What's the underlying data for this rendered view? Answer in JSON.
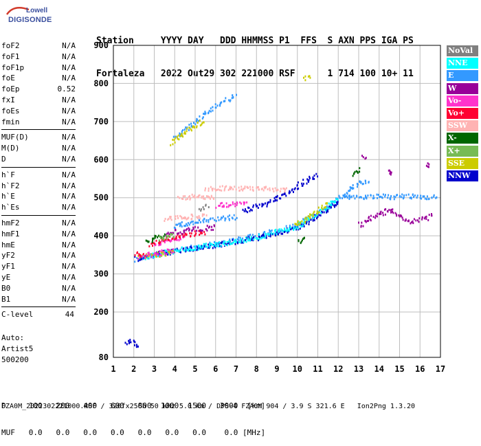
{
  "logo": {
    "brand": "Lowell",
    "product": "DIGISONDE"
  },
  "header": {
    "labels": [
      "Station",
      "YYYY",
      "DAY",
      "DDD",
      "HHMMSS",
      "P1",
      "FFS",
      "S",
      "AXN",
      "PPS",
      "IGA",
      "PS"
    ],
    "values": [
      "Fortaleza",
      "2022",
      "Out29",
      "302",
      "221000",
      "RSF",
      "",
      "1",
      "714",
      "100",
      "10+",
      "11"
    ]
  },
  "params_group1": [
    {
      "name": "foF2",
      "value": "N/A"
    },
    {
      "name": "foF1",
      "value": "N/A"
    },
    {
      "name": "foF1p",
      "value": "N/A"
    },
    {
      "name": "foE",
      "value": "N/A"
    },
    {
      "name": "foEp",
      "value": "0.52"
    },
    {
      "name": "fxI",
      "value": "N/A"
    },
    {
      "name": "foEs",
      "value": "N/A"
    },
    {
      "name": "fmin",
      "value": "N/A"
    }
  ],
  "params_group2": [
    {
      "name": "MUF(D)",
      "value": "N/A"
    },
    {
      "name": "M(D)",
      "value": "N/A"
    },
    {
      "name": "D",
      "value": "N/A"
    }
  ],
  "params_group3": [
    {
      "name": "h`F",
      "value": "N/A"
    },
    {
      "name": "h`F2",
      "value": "N/A"
    },
    {
      "name": "h`E",
      "value": "N/A"
    },
    {
      "name": "h`Es",
      "value": "N/A"
    }
  ],
  "params_group4": [
    {
      "name": "hmF2",
      "value": "N/A"
    },
    {
      "name": "hmF1",
      "value": "N/A"
    },
    {
      "name": "hmE",
      "value": "N/A"
    },
    {
      "name": "yF2",
      "value": "N/A"
    },
    {
      "name": "yF1",
      "value": "N/A"
    },
    {
      "name": "yE",
      "value": "N/A"
    },
    {
      "name": "B0",
      "value": "N/A"
    },
    {
      "name": "B1",
      "value": "N/A"
    }
  ],
  "clevel": {
    "name": "C-level",
    "value": "44"
  },
  "auto": [
    "Auto:",
    "Artist5",
    "500200"
  ],
  "legend": [
    {
      "label": "NoVal",
      "color": "#808080"
    },
    {
      "label": "NNE",
      "color": "#00ffff"
    },
    {
      "label": "E",
      "color": "#3399ff"
    },
    {
      "label": "W",
      "color": "#990099"
    },
    {
      "label": "Vo-",
      "color": "#ff33cc"
    },
    {
      "label": "Vo+",
      "color": "#ff0033"
    },
    {
      "label": "SSW",
      "color": "#ffb3b3"
    },
    {
      "label": "X-",
      "color": "#006600"
    },
    {
      "label": "X+",
      "color": "#77bb55"
    },
    {
      "label": "SSE",
      "color": "#cccc00"
    },
    {
      "label": "NNW",
      "color": "#0000cc"
    }
  ],
  "footer": {
    "d_label": "D",
    "d_values": [
      "100",
      "200",
      "400",
      "600",
      "800",
      "1000",
      "1500",
      "3000",
      "[km]"
    ],
    "muf_label": "MUF",
    "muf_values": [
      "0.0",
      "0.0",
      "0.0",
      "0.0",
      "0.0",
      "0.0",
      "0.0",
      "0.0",
      "[MHz]"
    ],
    "line": "FZA0M_2022302221000.RSF / 320fx256h 50 kHz 5.0 km / DPS-4 FZA0M 904 / 3.9 S 321.6 E   Ion2Png 1.3.20"
  },
  "chart_data": {
    "type": "scatter",
    "xlim": [
      1,
      17
    ],
    "ylim": [
      80,
      900
    ],
    "xticks": [
      1,
      2,
      3,
      4,
      5,
      6,
      7,
      8,
      9,
      10,
      11,
      12,
      13,
      14,
      15,
      16,
      17
    ],
    "yticks": [
      80,
      200,
      300,
      400,
      500,
      600,
      700,
      800,
      900
    ],
    "grid": "on",
    "legend_placement": "right",
    "series": [
      {
        "name": "E",
        "traces": [
          [
            [
              2.1,
              340
            ],
            [
              3.0,
              352
            ],
            [
              4.0,
              362
            ],
            [
              5.0,
              372
            ],
            [
              6.0,
              382
            ],
            [
              7.0,
              392
            ],
            [
              8.0,
              402
            ],
            [
              9.0,
              415
            ],
            [
              10.0,
              432
            ],
            [
              11.0,
              462
            ],
            [
              11.5,
              480
            ],
            [
              12.0,
              498
            ],
            [
              12.5,
              520
            ],
            [
              13.0,
              540
            ],
            [
              13.5,
              548
            ]
          ],
          [
            [
              3.9,
              428
            ],
            [
              5.0,
              438
            ],
            [
              6.0,
              446
            ],
            [
              7.0,
              452
            ]
          ],
          [
            [
              12.2,
              505
            ],
            [
              14.5,
              505
            ],
            [
              16.8,
              505
            ]
          ],
          [
            [
              4.0,
              660
            ],
            [
              5.0,
              700
            ],
            [
              6.0,
              745
            ],
            [
              7.0,
              770
            ]
          ]
        ]
      },
      {
        "name": "NNW",
        "traces": [
          [
            [
              2.1,
              342
            ],
            [
              3.0,
              354
            ],
            [
              4.5,
              366
            ],
            [
              6.0,
              378
            ],
            [
              7.5,
              392
            ],
            [
              9.0,
              408
            ],
            [
              10.0,
              425
            ],
            [
              11.0,
              455
            ],
            [
              12.0,
              492
            ]
          ],
          [
            [
              7.3,
              468
            ],
            [
              8.5,
              488
            ],
            [
              9.5,
              515
            ],
            [
              10.3,
              545
            ],
            [
              11.0,
              560
            ]
          ],
          [
            [
              1.6,
              118
            ],
            [
              1.8,
              125
            ],
            [
              2.0,
              122
            ],
            [
              2.2,
              110
            ]
          ]
        ]
      },
      {
        "name": "NNE",
        "traces": [
          [
            [
              2.5,
              345
            ],
            [
              3.5,
              358
            ],
            [
              5.0,
              372
            ],
            [
              6.5,
              384
            ],
            [
              8.0,
              398
            ],
            [
              10.0,
              428
            ],
            [
              11.2,
              470
            ],
            [
              12.0,
              500
            ]
          ]
        ]
      },
      {
        "name": "SSE",
        "traces": [
          [
            [
              3.8,
              645
            ],
            [
              4.2,
              665
            ],
            [
              4.8,
              688
            ],
            [
              5.5,
              705
            ]
          ],
          [
            [
              9.8,
              428
            ],
            [
              10.5,
              450
            ],
            [
              11.0,
              470
            ],
            [
              11.5,
              488
            ]
          ],
          [
            [
              2.2,
              345
            ],
            [
              3.0,
              352
            ],
            [
              4.0,
              360
            ]
          ],
          [
            [
              10.3,
              815
            ],
            [
              10.6,
              820
            ]
          ]
        ]
      },
      {
        "name": "SSW",
        "traces": [
          [
            [
              5.5,
              525
            ],
            [
              6.5,
              528
            ],
            [
              7.5,
              527
            ],
            [
              8.5,
              525
            ],
            [
              9.5,
              522
            ]
          ],
          [
            [
              4.2,
              503
            ],
            [
              5.0,
              505
            ],
            [
              6.0,
              503
            ]
          ],
          [
            [
              3.5,
              448
            ],
            [
              4.5,
              452
            ],
            [
              5.5,
              455
            ]
          ]
        ]
      },
      {
        "name": "Vo-",
        "traces": [
          [
            [
              3.0,
              382
            ],
            [
              3.5,
              388
            ],
            [
              4.0,
              395
            ],
            [
              4.5,
              400
            ]
          ],
          [
            [
              6.0,
              482
            ],
            [
              7.0,
              485
            ],
            [
              7.5,
              487
            ]
          ],
          [
            [
              2.2,
              347
            ],
            [
              3.0,
              355
            ],
            [
              4.0,
              365
            ]
          ]
        ]
      },
      {
        "name": "Vo+",
        "traces": [
          [
            [
              2.8,
              378
            ],
            [
              3.5,
              392
            ],
            [
              4.5,
              405
            ],
            [
              5.5,
              412
            ]
          ],
          [
            [
              2.0,
              352
            ],
            [
              2.5,
              356
            ]
          ]
        ]
      },
      {
        "name": "W",
        "traces": [
          [
            [
              13.0,
              430
            ],
            [
              13.5,
              445
            ],
            [
              14.0,
              460
            ],
            [
              14.5,
              470
            ],
            [
              15.0,
              450
            ],
            [
              15.5,
              440
            ],
            [
              16.0,
              445
            ],
            [
              16.6,
              455
            ]
          ],
          [
            [
              13.2,
              610
            ],
            [
              13.3,
              600
            ]
          ],
          [
            [
              14.5,
              580
            ],
            [
              14.6,
              560
            ]
          ],
          [
            [
              16.3,
              590
            ],
            [
              16.5,
              580
            ]
          ],
          [
            [
              3.5,
              408
            ],
            [
              4.0,
              412
            ],
            [
              4.5,
              415
            ],
            [
              5.0,
              420
            ],
            [
              6.0,
              425
            ]
          ]
        ]
      },
      {
        "name": "X-",
        "traces": [
          [
            [
              2.6,
              388
            ],
            [
              3.0,
              396
            ],
            [
              3.5,
              402
            ]
          ],
          [
            [
              12.7,
              560
            ],
            [
              13.0,
              580
            ]
          ],
          [
            [
              10.0,
              388
            ],
            [
              10.4,
              392
            ]
          ]
        ]
      },
      {
        "name": "X+",
        "traces": [
          [
            [
              3.2,
              395
            ],
            [
              3.6,
              400
            ],
            [
              4.0,
              406
            ]
          ]
        ]
      },
      {
        "name": "NoVal",
        "traces": [
          [
            [
              5.2,
              472
            ],
            [
              5.4,
              478
            ],
            [
              5.6,
              482
            ]
          ]
        ]
      }
    ]
  }
}
